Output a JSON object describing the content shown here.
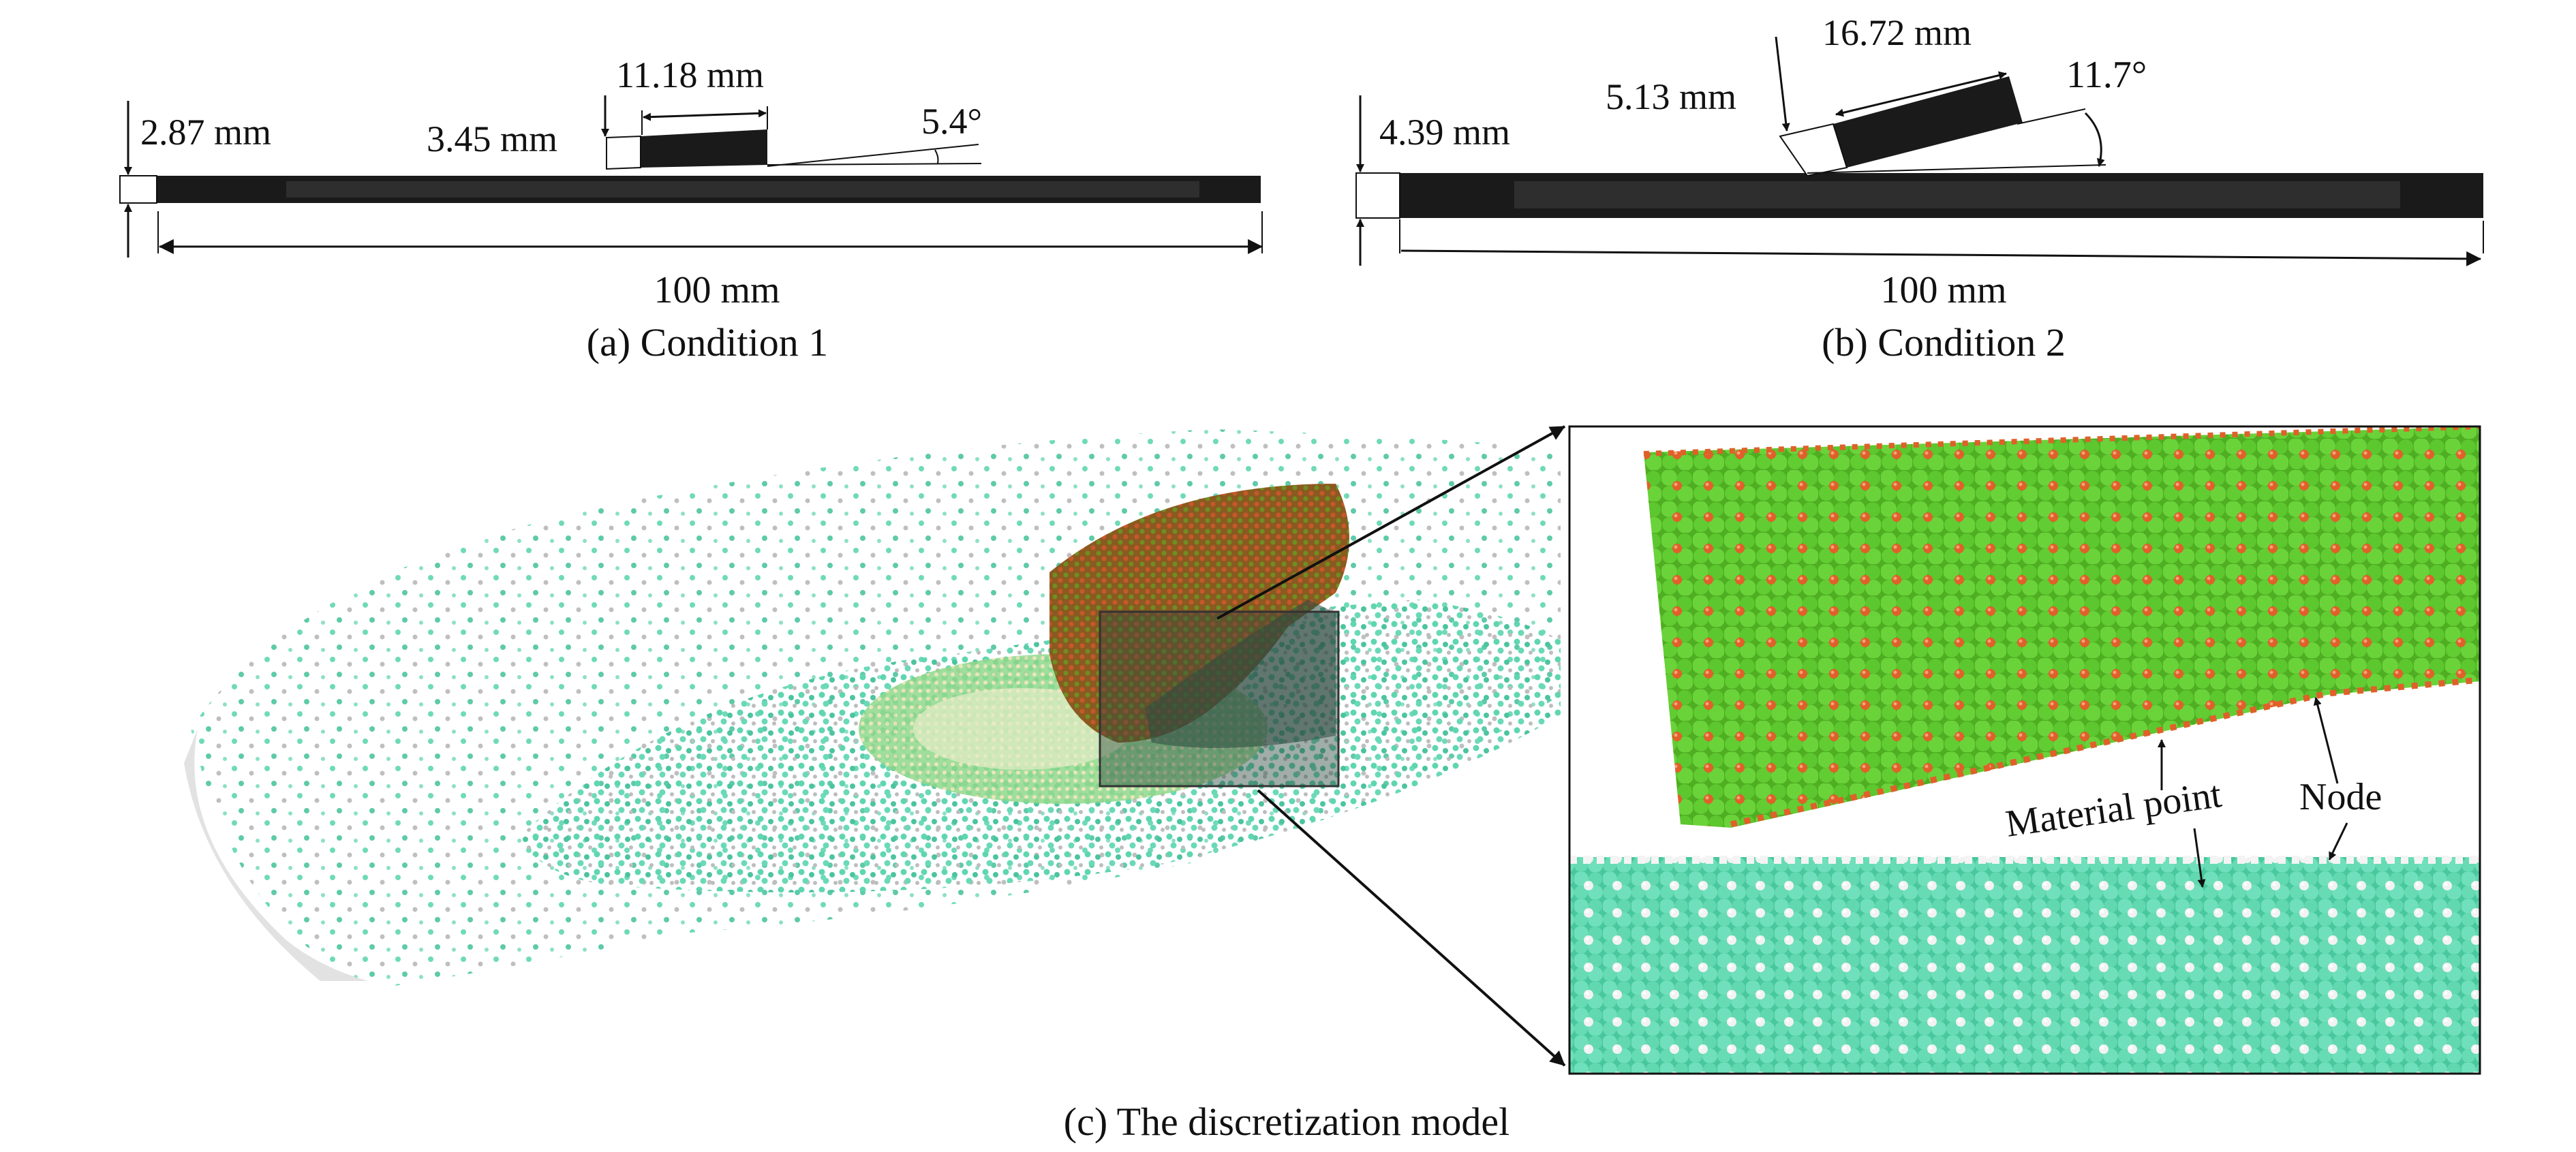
{
  "panel_a": {
    "caption": "(a) Condition 1",
    "length_label": "100 mm",
    "thickness_label": "2.87 mm",
    "gap_label": "3.45 mm",
    "block_length_label": "11.18 mm",
    "angle_label": "5.4°"
  },
  "panel_b": {
    "caption": "(b) Condition 2",
    "length_label": "100 mm",
    "thickness_label": "4.39 mm",
    "gap_label": "5.13 mm",
    "block_length_label": "16.72 mm",
    "angle_label": "11.7°"
  },
  "panel_c": {
    "caption": "(c) The discretization model",
    "material_point_label": "Material point",
    "node_label": "Node"
  },
  "colors": {
    "plate_dark": "#1a1a1a",
    "plate_mid": "#2e2e2e",
    "material_point_green": "#5cc72e",
    "node_orange": "#e0602a",
    "workpiece_teal": "#5fd6b0",
    "node_white": "#f2f2f2"
  }
}
